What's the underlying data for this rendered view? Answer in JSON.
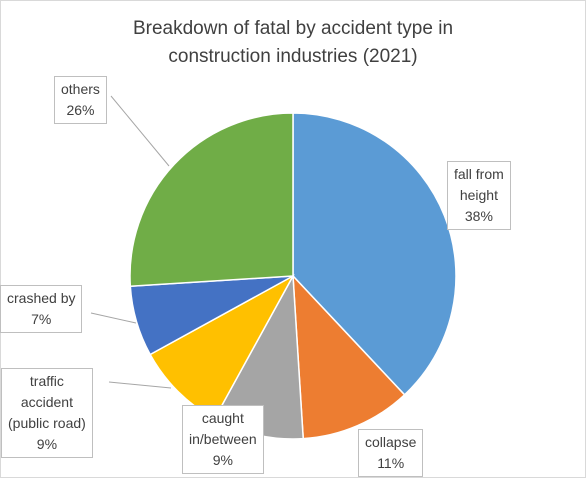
{
  "chart_data": {
    "type": "pie",
    "title_lines": [
      "Breakdown of fatal by accident type in",
      "construction industries (2021)"
    ],
    "slices": [
      {
        "label_lines": [
          "fall from",
          "height"
        ],
        "value": 38,
        "value_text": "38%",
        "color": "#5B9BD5"
      },
      {
        "label_lines": [
          "collapse"
        ],
        "value": 11,
        "value_text": "11%",
        "color": "#ED7D31"
      },
      {
        "label_lines": [
          "caught",
          "in/between"
        ],
        "value": 9,
        "value_text": "9%",
        "color": "#A5A5A5"
      },
      {
        "label_lines": [
          "traffic",
          "accident",
          "(public road)"
        ],
        "value": 9,
        "value_text": "9%",
        "color": "#FFC000"
      },
      {
        "label_lines": [
          "crashed by"
        ],
        "value": 7,
        "value_text": "7%",
        "color": "#4472C4"
      },
      {
        "label_lines": [
          "others"
        ],
        "value": 26,
        "value_text": "26%",
        "color": "#70AD47"
      }
    ],
    "start_angle_deg": 0,
    "direction": "clockwise"
  }
}
